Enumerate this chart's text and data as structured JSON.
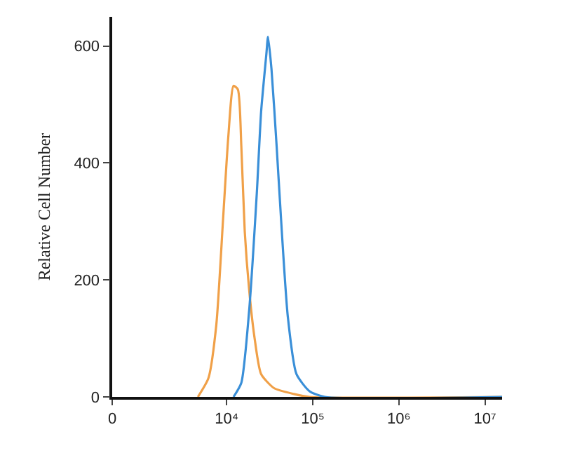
{
  "chart_data": {
    "type": "line",
    "ylabel": "Relative Cell Number",
    "log": "x",
    "xlim": [
      0,
      15800000
    ],
    "ylim": [
      0,
      650
    ],
    "xticks": [
      0,
      {
        "value": 10000,
        "label": "10⁴"
      },
      {
        "value": 100000,
        "label": "10⁵"
      },
      {
        "value": 1000000,
        "label": "10⁶"
      },
      {
        "value": 10000000,
        "label": "10⁷"
      }
    ],
    "yticks": [
      0,
      200,
      400,
      600
    ],
    "marker": "none",
    "line_style": "solid",
    "series": [
      {
        "color": "#f0a048",
        "x": [
          4630,
          6130,
          7560,
          9100,
          10450,
          12000,
          13470,
          14780,
          16200,
          18190,
          20880,
          25110,
          35480,
          60260,
          91200,
          15800000
        ],
        "values": [
          0,
          32,
          122,
          307,
          446,
          532,
          526,
          429,
          283,
          185,
          105,
          39,
          15,
          5,
          0,
          0
        ]
      },
      {
        "color": "#3a8fd8",
        "x": [
          12000,
          14780,
          18190,
          22380,
          25110,
          28830,
          30190,
          33110,
          38010,
          43650,
          51280,
          64565,
          91200,
          138040,
          15800000
        ],
        "values": [
          0,
          24,
          146,
          349,
          488,
          585,
          616,
          561,
          429,
          283,
          137,
          39,
          10,
          0,
          0
        ]
      }
    ]
  }
}
